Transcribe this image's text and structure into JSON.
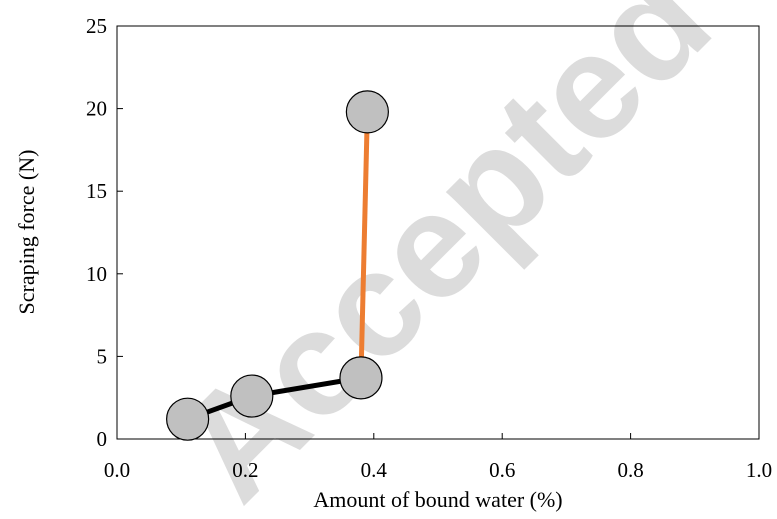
{
  "watermark_text": "Accepted",
  "chart_data": {
    "type": "scatter",
    "title": "",
    "xlabel": "Amount of  bound water (%)",
    "ylabel": "Scraping force (N)",
    "xlim": [
      0.0,
      1.0
    ],
    "ylim": [
      0,
      25
    ],
    "x_ticks": [
      "0.0",
      "0.2",
      "0.4",
      "0.6",
      "0.8",
      "1.0"
    ],
    "y_ticks": [
      "0",
      "5",
      "10",
      "15",
      "20",
      "25"
    ],
    "grid": false,
    "legend": "none",
    "series": [
      {
        "points": [
          {
            "x": 0.11,
            "y": 1.2
          },
          {
            "x": 0.21,
            "y": 2.6
          },
          {
            "x": 0.38,
            "y": 3.7
          }
        ],
        "line_color": "#000000"
      },
      {
        "points": [
          {
            "x": 0.38,
            "y": 3.7
          },
          {
            "x": 0.39,
            "y": 19.8
          }
        ],
        "line_color": "#ed7d31"
      }
    ],
    "markers": [
      {
        "x": 0.11,
        "y": 1.2
      },
      {
        "x": 0.21,
        "y": 2.6
      },
      {
        "x": 0.38,
        "y": 3.7
      },
      {
        "x": 0.39,
        "y": 19.8
      }
    ],
    "marker_fill": "#c0c0c0",
    "marker_stroke": "#000000"
  }
}
